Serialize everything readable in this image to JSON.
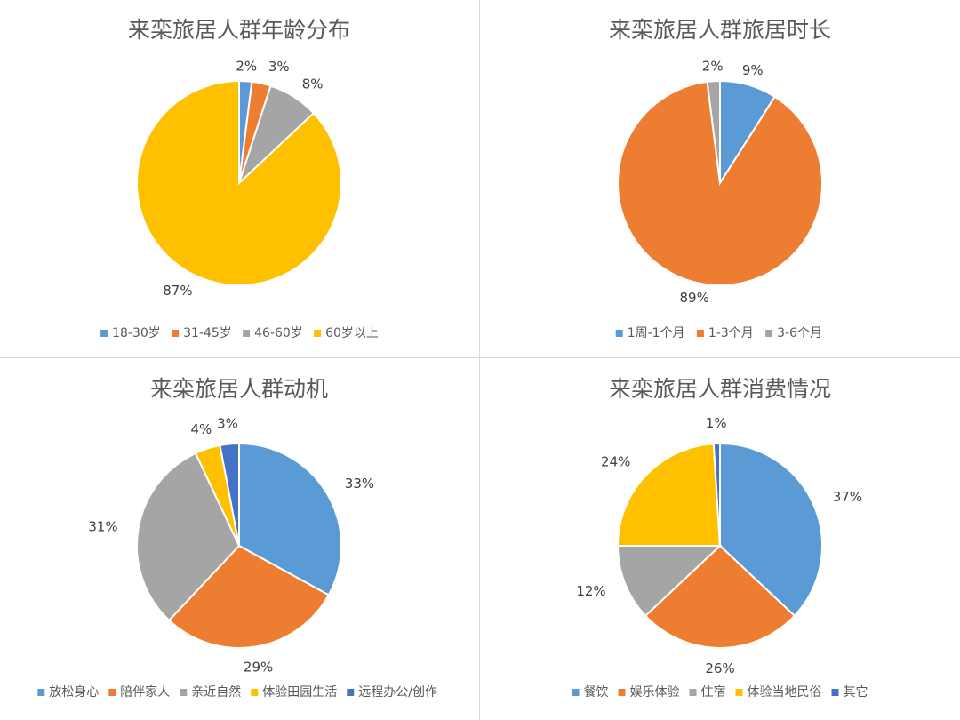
{
  "chart_data": [
    {
      "type": "pie",
      "title": "来栾旅居人群年龄分布",
      "categories": [
        "18-30岁",
        "31-45岁",
        "46-60岁",
        "60岁以上"
      ],
      "values": [
        2,
        3,
        8,
        87
      ],
      "labels": [
        "2%",
        "3%",
        "8%",
        "87%"
      ],
      "colors": [
        "#5b9bd5",
        "#ed7d31",
        "#a5a5a5",
        "#ffc000"
      ],
      "legend": "bottom"
    },
    {
      "type": "pie",
      "title": "来栾旅居人群旅居时长",
      "categories": [
        "1周-1个月",
        "1-3个月",
        "3-6个月"
      ],
      "values": [
        9,
        89,
        2
      ],
      "labels": [
        "9%",
        "89%",
        "2%"
      ],
      "colors": [
        "#5b9bd5",
        "#ed7d31",
        "#a5a5a5"
      ],
      "legend": "bottom"
    },
    {
      "type": "pie",
      "title": "来栾旅居人群动机",
      "categories": [
        "放松身心",
        "陪伴家人",
        "亲近自然",
        "体验田园生活",
        "远程办公/创作"
      ],
      "values": [
        33,
        29,
        31,
        4,
        3
      ],
      "labels": [
        "33%",
        "29%",
        "31%",
        "4%",
        "3%"
      ],
      "colors": [
        "#5b9bd5",
        "#ed7d31",
        "#a5a5a5",
        "#ffc000",
        "#4472c4"
      ],
      "legend": "bottom"
    },
    {
      "type": "pie",
      "title": "来栾旅居人群消费情况",
      "categories": [
        "餐饮",
        "娱乐体验",
        "住宿",
        "体验当地民俗",
        "其它"
      ],
      "values": [
        37,
        26,
        12,
        24,
        1
      ],
      "labels": [
        "37%",
        "26%",
        "12%",
        "24%",
        "1%"
      ],
      "colors": [
        "#5b9bd5",
        "#ed7d31",
        "#a5a5a5",
        "#ffc000",
        "#4472c4"
      ],
      "legend": "bottom"
    }
  ]
}
